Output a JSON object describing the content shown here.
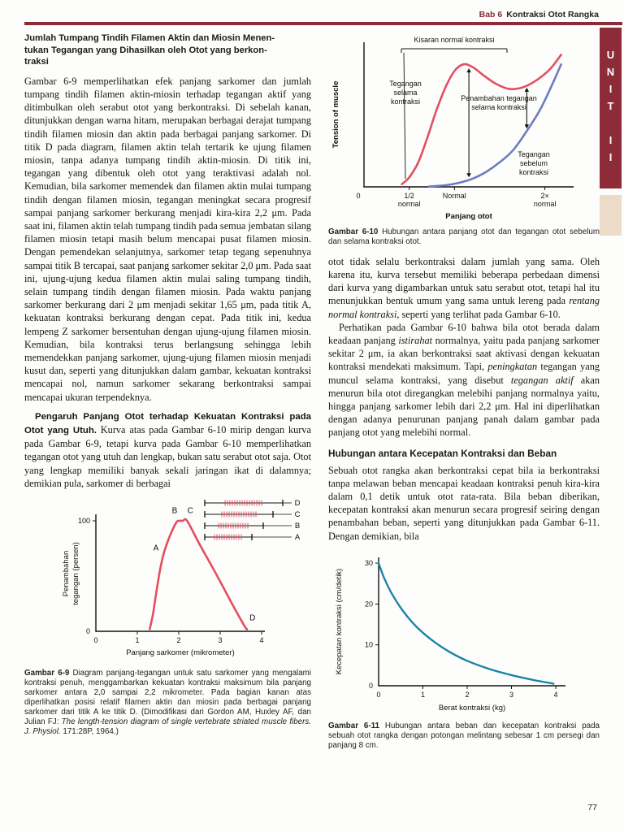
{
  "header": {
    "chapter": "Bab 6",
    "title": "Kontraksi Otot Rangka",
    "unit": "UNIT II",
    "page_number": "77"
  },
  "left": {
    "heading": "Jumlah Tumpang Tindih Filamen Aktin dan Miosin Menen-\ntukan Tegangan yang Dihasilkan oleh Otot yang berkon-\ntraksi",
    "para1": "Gambar 6-9 memperlihatkan efek panjang sarkomer dan jumlah tumpang tindih filamen aktin-miosin terhadap tegangan aktif yang ditimbulkan oleh serabut otot yang berkontraksi. Di sebelah kanan, ditunjukkan dengan warna hitam, merupakan berbagai derajat tumpang tindih filamen miosin dan aktin pada berbagai panjang sarkomer. Di titik D pada diagram, filamen aktin telah tertarik ke ujung filamen miosin, tanpa adanya tumpang tindih aktin-miosin. Di titik ini, tegangan yang dibentuk oleh otot yang teraktivasi adalah nol. Kemudian, bila sarkomer memendek dan filamen aktin mulai tumpang tindih dengan filamen miosin, tegangan meningkat secara progresif sampai panjang sarkomer berkurang menjadi kira-kira 2,2 μm. Pada saat ini, filamen aktin telah tumpang tindih pada semua jembatan silang filamen miosin tetapi masih belum mencapai pusat filamen miosin. Dengan pemendekan selanjutnya, sarkomer tetap tegang sepenuhnya sampai titik B tercapai, saat panjang sarkomer sekitar 2,0 μm. Pada saat ini, ujung-ujung kedua filamen aktin mulai saling tumpang tindih, selain tumpang tindih dengan filamen miosin. Pada waktu panjang sarkomer berkurang dari 2 μm menjadi sekitar 1,65 μm, pada titik A, kekuatan kontraksi berkurang dengan cepat. Pada titik ini, kedua lempeng Z sarkomer bersentuhan dengan ujung-ujung filamen miosin. Kemudian, bila kontraksi terus berlangsung sehingga lebih memendekkan panjang sarkomer, ujung-ujung filamen miosin menjadi kusut dan, seperti yang ditunjukkan dalam gambar, kekuatan kontraksi mencapai nol, namun sarkomer sekarang berkontraksi sampai mencapai ukuran terpendeknya.",
    "para2": [
      {
        "t": "Pengaruh Panjang Otot terhadap Kekuatan Kontraksi pada Otot yang Utuh.",
        "s": "h"
      },
      {
        "t": " Kurva atas pada Gambar 6-10 mirip dengan kurva pada Gambar 6-9, tetapi kurva pada Gambar 6-10 memperlihatkan tegangan otot yang utuh dan lengkap, bukan satu serabut otot saja. Otot yang lengkap memiliki banyak sekali jaringan ikat di dalamnya; demikian pula, sarkomer di berbagai",
        "s": ""
      }
    ],
    "caption9": [
      {
        "t": "Gambar 6-9",
        "s": "b"
      },
      {
        "t": " Diagram panjang-tegangan untuk satu sarkomer yang mengalami kontraksi penuh, menggambarkan kekuatan kontraksi maksimum bila panjang sarkomer antara 2,0 sampai 2,2 mikrometer. Pada bagian kanan atas diperlihatkan posisi relatif filamen aktin dan miosin pada berbagai panjang sarkomer dari titik A ke titik D. (Dimodifikasi dari Gordon AM, Huxley AF, dan Julian FJ: ",
        "s": ""
      },
      {
        "t": "The length-tension diagram of single vertebrate striated muscle fibers. J. Physiol.",
        "s": "i"
      },
      {
        "t": " 171:28P, 1964.)",
        "s": ""
      }
    ]
  },
  "right": {
    "caption10": [
      {
        "t": "Gambar 6-10",
        "s": "b"
      },
      {
        "t": " Hubungan antara panjang otot dan tegangan otot sebelum dan selama kontraksi otot.",
        "s": ""
      }
    ],
    "para1": [
      {
        "t": "otot tidak selalu berkontraksi dalam jumlah yang sama. Oleh karena itu, kurva tersebut memiliki beberapa perbedaan dimensi dari kurva yang digambarkan untuk satu serabut otot, tetapi hal itu menunjukkan bentuk umum yang sama untuk lereng pada ",
        "s": ""
      },
      {
        "t": "rentang normal kontraksi",
        "s": "i"
      },
      {
        "t": ", seperti yang terlihat pada Gambar 6-10.",
        "s": ""
      }
    ],
    "para2": [
      {
        "t": "Perhatikan pada Gambar 6-10 bahwa bila otot berada dalam keadaan panjang ",
        "s": ""
      },
      {
        "t": "istirahat",
        "s": "i"
      },
      {
        "t": " normalnya, yaitu pada panjang sarkomer sekitar 2 μm, ia akan berkontraksi saat aktivasi dengan kekuatan kontraksi mendekati maksimum. Tapi, ",
        "s": ""
      },
      {
        "t": "peningkatan",
        "s": "i"
      },
      {
        "t": " tegangan yang muncul selama kontraksi, yang disebut ",
        "s": ""
      },
      {
        "t": "tegangan aktif",
        "s": "i"
      },
      {
        "t": " akan menurun bila otot diregangkan melebihi panjang normalnya yaitu, hingga panjang sarkomer lebih dari 2,2 μm. Hal ini diperlihatkan dengan adanya penurunan panjang panah dalam gambar pada panjang otot yang melebihi normal.",
        "s": ""
      }
    ],
    "heading": "Hubungan antara Kecepatan Kontraksi dan Beban",
    "para3": "Sebuah otot rangka akan berkontraksi cepat bila ia berkontraksi tanpa melawan beban mencapai keadaan kontraksi penuh kira-kira dalam 0,1 detik untuk otot rata-rata. Bila beban diberikan, kecepatan kontraksi akan menurun secara progresif seiring dengan penambahan beban, seperti yang ditunjukkan pada Gambar 6-11. Dengan demikian, bila",
    "caption11": [
      {
        "t": "Gambar 6-11",
        "s": "b"
      },
      {
        "t": " Hubungan antara beban dan kecepatan kontraksi pada sebuah otot rangka dengan potongan melintang sebesar 1 cm persegi dan panjang 8 cm.",
        "s": ""
      }
    ]
  },
  "chart_data": [
    {
      "id": "fig6-10",
      "type": "line",
      "xlabel": "Panjang otot",
      "ylabel": "Tension of muscle",
      "xlim": [
        0,
        2.3
      ],
      "ylim": [
        0,
        1.05
      ],
      "x_ticks": [
        {
          "pos": 0,
          "label": "0"
        },
        {
          "pos": 0.5,
          "label": "1/2\nnormal"
        },
        {
          "pos": 1,
          "label": "Normal"
        },
        {
          "pos": 2,
          "label": "2×\nnormal"
        }
      ],
      "series": [
        {
          "name": "Tegangan selama kontraksi",
          "color": "#e44f5e",
          "x": [
            0.42,
            0.5,
            0.6,
            0.7,
            0.8,
            0.9,
            1.0,
            1.1,
            1.2,
            1.32,
            1.45,
            1.6,
            1.75,
            1.9,
            2.05,
            2.18
          ],
          "y": [
            0.02,
            0.07,
            0.18,
            0.36,
            0.56,
            0.73,
            0.85,
            0.9,
            0.88,
            0.82,
            0.76,
            0.72,
            0.73,
            0.78,
            0.86,
            0.97
          ]
        },
        {
          "name": "Tegangan sebelum kontraksi",
          "color": "#6d7cc0",
          "x": [
            0.72,
            0.9,
            1.05,
            1.2,
            1.35,
            1.5,
            1.65,
            1.8,
            1.95,
            2.08,
            2.18
          ],
          "y": [
            0.003,
            0.012,
            0.03,
            0.06,
            0.11,
            0.18,
            0.27,
            0.41,
            0.57,
            0.75,
            0.9
          ]
        }
      ],
      "labels": {
        "range": "Kisaran normal kontraksi",
        "during": "Tegangan\nselama\nkontraksi",
        "increase": "Penambahan tegangan\nselama kontraksi",
        "before": "Tegangan\nsebelum\nkontraksi"
      },
      "arrows_x": [
        1.16,
        1.8
      ],
      "grid": false,
      "legend": "none"
    },
    {
      "id": "fig6-9",
      "type": "line",
      "xlabel": "Panjang sarkomer (mikrometer)",
      "ylabel": "Penambahan\ntegangan (persen)",
      "xlim": [
        0,
        4
      ],
      "ylim": [
        0,
        110
      ],
      "x_ticks": [
        0,
        1,
        2,
        3,
        4
      ],
      "y_ticks": [
        0,
        100
      ],
      "series": [
        {
          "name": "Penambahan tegangan",
          "color": "#e44f5e",
          "x": [
            1.3,
            1.38,
            1.47,
            1.56,
            1.65,
            1.75,
            1.85,
            1.95,
            2.0,
            2.1,
            2.2,
            2.5,
            2.9,
            3.3,
            3.6,
            3.65
          ],
          "y": [
            2,
            16,
            38,
            58,
            72,
            83,
            92,
            99,
            100,
            100,
            100,
            79,
            52,
            24,
            4,
            2
          ]
        }
      ],
      "point_labels": [
        {
          "label": "A",
          "x": 1.45,
          "y": 73
        },
        {
          "label": "B",
          "x": 1.9,
          "y": 107
        },
        {
          "label": "C",
          "x": 2.28,
          "y": 107
        },
        {
          "label": "D",
          "x": 3.78,
          "y": 10
        }
      ],
      "inset_labels": [
        "D",
        "C",
        "B",
        "A"
      ],
      "grid": false,
      "legend": "none"
    },
    {
      "id": "fig6-11",
      "type": "line",
      "xlabel": "Berat kontraksi (kg)",
      "ylabel": "Kecepatan kontraksi (cm/detik)",
      "xlim": [
        0,
        4.2
      ],
      "ylim": [
        0,
        31
      ],
      "x_ticks": [
        0,
        1,
        2,
        3,
        4
      ],
      "y_ticks": [
        0,
        10,
        20,
        30
      ],
      "series": [
        {
          "name": "Kecepatan kontraksi",
          "color": "#1a84ab",
          "x": [
            0,
            0.12,
            0.3,
            0.55,
            0.85,
            1.2,
            1.6,
            2.0,
            2.5,
            3.0,
            3.5,
            3.95
          ],
          "y": [
            30,
            26.5,
            22.5,
            18.3,
            14.5,
            11.2,
            8.3,
            6.1,
            4.1,
            2.6,
            1.4,
            0.5
          ]
        }
      ],
      "grid": false,
      "legend": "none"
    }
  ]
}
